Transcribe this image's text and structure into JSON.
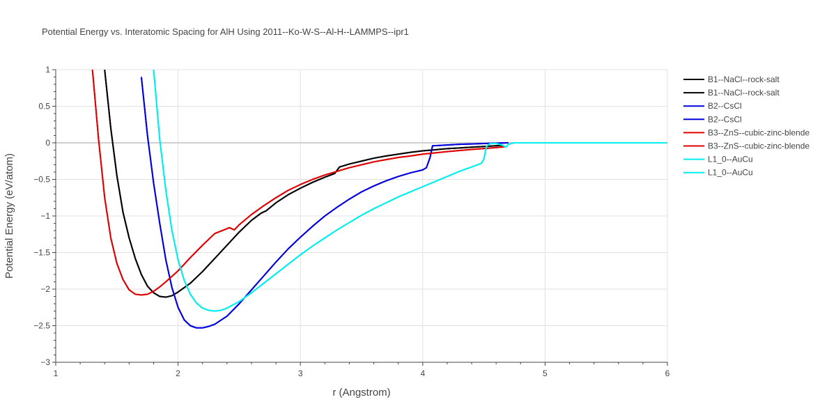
{
  "chart_data": {
    "type": "line",
    "title": "Potential Energy vs. Interatomic Spacing for AlH Using 2011--Ko-W-S--Al-H--LAMMPS--ipr1",
    "xlabel": "r (Angstrom)",
    "ylabel": "Potential Energy (eV/atom)",
    "xlim": [
      1,
      6
    ],
    "ylim": [
      -3,
      1
    ],
    "xticks": [
      1,
      2,
      3,
      4,
      5,
      6
    ],
    "xtick_labels": [
      "1",
      "2",
      "3",
      "4",
      "5",
      "6"
    ],
    "yticks": [
      1,
      0.5,
      0,
      -0.5,
      -1,
      -1.5,
      -2,
      -2.5,
      -3
    ],
    "ytick_labels": [
      "1",
      "0.5",
      "0",
      "−0.5",
      "−1",
      "−1.5",
      "−2",
      "−2.5",
      "−3"
    ],
    "grid": true,
    "legend_position": "right",
    "series": [
      {
        "name": "B1--NaCl--rock-salt",
        "color": "#000000",
        "x": [
          1.4,
          1.45,
          1.5,
          1.55,
          1.6,
          1.65,
          1.7,
          1.75,
          1.8,
          1.85,
          1.9,
          1.95,
          2.0,
          2.1,
          2.2,
          2.3,
          2.4,
          2.5,
          2.6,
          2.68,
          2.72,
          2.8,
          2.9,
          3.0,
          3.1,
          3.2,
          3.28,
          3.32,
          3.4,
          3.5,
          3.6,
          3.7,
          3.8,
          3.9,
          4.0,
          4.1,
          4.2,
          4.3,
          4.4,
          4.5,
          4.6,
          4.65
        ],
        "y": [
          1.0,
          0.2,
          -0.45,
          -0.95,
          -1.3,
          -1.58,
          -1.8,
          -1.96,
          -2.05,
          -2.1,
          -2.11,
          -2.09,
          -2.04,
          -1.92,
          -1.76,
          -1.58,
          -1.4,
          -1.22,
          -1.06,
          -0.96,
          -0.93,
          -0.82,
          -0.71,
          -0.62,
          -0.54,
          -0.47,
          -0.42,
          -0.33,
          -0.29,
          -0.25,
          -0.21,
          -0.18,
          -0.155,
          -0.13,
          -0.11,
          -0.095,
          -0.08,
          -0.07,
          -0.06,
          -0.05,
          -0.04,
          -0.035
        ]
      },
      {
        "name": "B1--NaCl--rock-salt",
        "color": "#000000",
        "x": [
          1.4,
          1.45,
          1.5,
          1.55,
          1.6,
          1.65,
          1.7,
          1.75,
          1.8,
          1.85,
          1.9,
          1.95,
          2.0,
          2.1,
          2.2,
          2.3,
          2.4,
          2.5,
          2.6,
          2.68,
          2.72,
          2.8,
          2.9,
          3.0,
          3.1,
          3.2,
          3.28,
          3.32,
          3.4,
          3.5,
          3.6,
          3.7,
          3.8,
          3.9,
          4.0,
          4.1,
          4.2,
          4.3,
          4.4,
          4.5,
          4.6,
          4.65
        ],
        "y": [
          1.0,
          0.2,
          -0.45,
          -0.95,
          -1.3,
          -1.58,
          -1.8,
          -1.96,
          -2.05,
          -2.1,
          -2.11,
          -2.09,
          -2.04,
          -1.92,
          -1.76,
          -1.58,
          -1.4,
          -1.22,
          -1.06,
          -0.96,
          -0.93,
          -0.82,
          -0.71,
          -0.62,
          -0.54,
          -0.47,
          -0.42,
          -0.33,
          -0.29,
          -0.25,
          -0.21,
          -0.18,
          -0.155,
          -0.13,
          -0.11,
          -0.095,
          -0.08,
          -0.07,
          -0.06,
          -0.05,
          -0.04,
          -0.035
        ]
      },
      {
        "name": "B2--CsCl",
        "color": "#0000dd",
        "x": [
          1.7,
          1.75,
          1.8,
          1.85,
          1.9,
          1.95,
          2.0,
          2.05,
          2.1,
          2.15,
          2.2,
          2.25,
          2.3,
          2.4,
          2.5,
          2.6,
          2.7,
          2.8,
          2.9,
          3.0,
          3.1,
          3.2,
          3.3,
          3.4,
          3.5,
          3.6,
          3.7,
          3.8,
          3.9,
          4.0,
          4.03,
          4.06,
          4.08,
          4.2,
          4.3,
          4.4,
          4.5,
          4.6,
          4.7
        ],
        "y": [
          0.9,
          0.1,
          -0.55,
          -1.1,
          -1.6,
          -1.98,
          -2.25,
          -2.42,
          -2.5,
          -2.53,
          -2.53,
          -2.51,
          -2.48,
          -2.37,
          -2.2,
          -2.01,
          -1.82,
          -1.63,
          -1.45,
          -1.29,
          -1.14,
          -1.0,
          -0.88,
          -0.77,
          -0.67,
          -0.59,
          -0.52,
          -0.46,
          -0.41,
          -0.37,
          -0.34,
          -0.2,
          -0.04,
          -0.03,
          -0.02,
          -0.015,
          -0.01,
          -0.005,
          0.0
        ]
      },
      {
        "name": "B2--CsCl",
        "color": "#0000dd",
        "x": [
          1.7,
          1.75,
          1.8,
          1.85,
          1.9,
          1.95,
          2.0,
          2.05,
          2.1,
          2.15,
          2.2,
          2.25,
          2.3,
          2.4,
          2.5,
          2.6,
          2.7,
          2.8,
          2.9,
          3.0,
          3.1,
          3.2,
          3.3,
          3.4,
          3.5,
          3.6,
          3.7,
          3.8,
          3.9,
          4.0,
          4.03,
          4.06,
          4.08,
          4.2,
          4.3,
          4.4,
          4.5,
          4.6,
          4.7
        ],
        "y": [
          0.9,
          0.1,
          -0.55,
          -1.1,
          -1.6,
          -1.98,
          -2.25,
          -2.42,
          -2.5,
          -2.53,
          -2.53,
          -2.51,
          -2.48,
          -2.37,
          -2.2,
          -2.01,
          -1.82,
          -1.63,
          -1.45,
          -1.29,
          -1.14,
          -1.0,
          -0.88,
          -0.77,
          -0.67,
          -0.59,
          -0.52,
          -0.46,
          -0.41,
          -0.37,
          -0.34,
          -0.2,
          -0.04,
          -0.03,
          -0.02,
          -0.015,
          -0.01,
          -0.005,
          0.0
        ]
      },
      {
        "name": "B3--ZnS--cubic-zinc-blende",
        "color": "#e00000",
        "x": [
          1.3,
          1.35,
          1.4,
          1.45,
          1.5,
          1.55,
          1.6,
          1.65,
          1.7,
          1.75,
          1.8,
          1.85,
          1.9,
          2.0,
          2.1,
          2.2,
          2.3,
          2.42,
          2.46,
          2.5,
          2.6,
          2.7,
          2.8,
          2.9,
          3.0,
          3.1,
          3.2,
          3.3,
          3.4,
          3.5,
          3.6,
          3.7,
          3.8,
          3.9,
          4.0,
          4.2,
          4.4,
          4.6,
          4.67
        ],
        "y": [
          1.0,
          0.05,
          -0.75,
          -1.3,
          -1.65,
          -1.87,
          -2.01,
          -2.07,
          -2.08,
          -2.07,
          -2.03,
          -1.97,
          -1.9,
          -1.75,
          -1.57,
          -1.4,
          -1.24,
          -1.16,
          -1.19,
          -1.12,
          -0.98,
          -0.86,
          -0.75,
          -0.65,
          -0.57,
          -0.5,
          -0.44,
          -0.39,
          -0.34,
          -0.3,
          -0.26,
          -0.23,
          -0.2,
          -0.18,
          -0.155,
          -0.12,
          -0.09,
          -0.065,
          -0.055
        ]
      },
      {
        "name": "B3--ZnS--cubic-zinc-blende",
        "color": "#e00000",
        "x": [
          1.3,
          1.35,
          1.4,
          1.45,
          1.5,
          1.55,
          1.6,
          1.65,
          1.7,
          1.75,
          1.8,
          1.85,
          1.9,
          2.0,
          2.1,
          2.2,
          2.3,
          2.42,
          2.46,
          2.5,
          2.6,
          2.7,
          2.8,
          2.9,
          3.0,
          3.1,
          3.2,
          3.3,
          3.4,
          3.5,
          3.6,
          3.7,
          3.8,
          3.9,
          4.0,
          4.2,
          4.4,
          4.6,
          4.67
        ],
        "y": [
          1.0,
          0.05,
          -0.75,
          -1.3,
          -1.65,
          -1.87,
          -2.01,
          -2.07,
          -2.08,
          -2.07,
          -2.03,
          -1.97,
          -1.9,
          -1.75,
          -1.57,
          -1.4,
          -1.24,
          -1.16,
          -1.19,
          -1.12,
          -0.98,
          -0.86,
          -0.75,
          -0.65,
          -0.57,
          -0.5,
          -0.44,
          -0.39,
          -0.34,
          -0.3,
          -0.26,
          -0.23,
          -0.2,
          -0.18,
          -0.155,
          -0.12,
          -0.09,
          -0.065,
          -0.055
        ]
      },
      {
        "name": "L1_0--AuCu",
        "color": "#00eeee",
        "x": [
          1.8,
          1.85,
          1.9,
          1.95,
          2.0,
          2.05,
          2.1,
          2.15,
          2.2,
          2.25,
          2.3,
          2.35,
          2.4,
          2.5,
          2.6,
          2.7,
          2.8,
          2.9,
          3.0,
          3.1,
          3.2,
          3.3,
          3.4,
          3.5,
          3.6,
          3.7,
          3.8,
          3.9,
          4.0,
          4.1,
          4.2,
          4.3,
          4.4,
          4.48,
          4.5,
          4.52,
          4.55,
          4.6,
          4.65,
          4.68,
          4.7,
          4.75,
          5.0,
          5.5,
          6.0
        ],
        "y": [
          1.0,
          0.05,
          -0.65,
          -1.2,
          -1.6,
          -1.88,
          -2.07,
          -2.19,
          -2.26,
          -2.29,
          -2.3,
          -2.29,
          -2.26,
          -2.17,
          -2.05,
          -1.92,
          -1.79,
          -1.66,
          -1.53,
          -1.41,
          -1.3,
          -1.19,
          -1.09,
          -0.99,
          -0.9,
          -0.82,
          -0.74,
          -0.67,
          -0.6,
          -0.53,
          -0.46,
          -0.39,
          -0.33,
          -0.28,
          -0.22,
          -0.05,
          -0.01,
          -0.01,
          -0.03,
          -0.06,
          -0.02,
          0.0,
          0.0,
          0.0,
          0.0
        ]
      },
      {
        "name": "L1_0--AuCu",
        "color": "#00eeee",
        "x": [
          1.8,
          1.85,
          1.9,
          1.95,
          2.0,
          2.05,
          2.1,
          2.15,
          2.2,
          2.25,
          2.3,
          2.35,
          2.4,
          2.5,
          2.6,
          2.7,
          2.8,
          2.9,
          3.0,
          3.1,
          3.2,
          3.3,
          3.4,
          3.5,
          3.6,
          3.7,
          3.8,
          3.9,
          4.0,
          4.1,
          4.2,
          4.3,
          4.4,
          4.48,
          4.5,
          4.52,
          4.55,
          4.6,
          4.65,
          4.68,
          4.7,
          4.75,
          5.0,
          5.5,
          6.0
        ],
        "y": [
          1.0,
          0.05,
          -0.65,
          -1.2,
          -1.6,
          -1.88,
          -2.07,
          -2.19,
          -2.26,
          -2.29,
          -2.3,
          -2.29,
          -2.26,
          -2.17,
          -2.05,
          -1.92,
          -1.79,
          -1.66,
          -1.53,
          -1.41,
          -1.3,
          -1.19,
          -1.09,
          -0.99,
          -0.9,
          -0.82,
          -0.74,
          -0.67,
          -0.6,
          -0.53,
          -0.46,
          -0.39,
          -0.33,
          -0.28,
          -0.22,
          -0.05,
          -0.01,
          -0.01,
          -0.03,
          -0.06,
          -0.02,
          0.0,
          0.0,
          0.0,
          0.0
        ]
      }
    ]
  }
}
